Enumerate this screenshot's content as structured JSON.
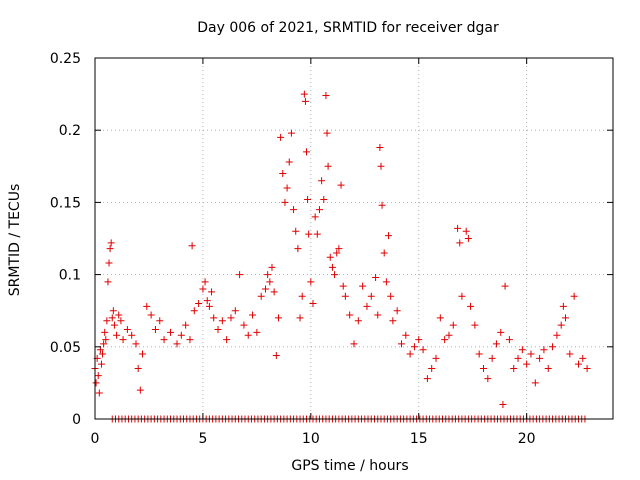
{
  "chart_data": {
    "type": "scatter",
    "title": "Day 006 of 2021, SRMTID for receiver dgar",
    "xlabel": "GPS time / hours",
    "ylabel": "SRMTID / TECUs",
    "xlim": [
      0,
      24
    ],
    "ylim": [
      0,
      0.25
    ],
    "xticks": [
      0,
      5,
      10,
      15,
      20
    ],
    "xtick_labels": [
      "0",
      "5",
      "10",
      "15",
      "20"
    ],
    "yticks": [
      0,
      0.05,
      0.1,
      0.15,
      0.2,
      0.25
    ],
    "ytick_labels": [
      "0",
      "0.05",
      "0.1",
      "0.15",
      "0.2",
      "0.25"
    ],
    "grid": true,
    "marker": "+",
    "color": "#e00000",
    "series": [
      {
        "name": "SRMTID",
        "points": [
          [
            0.0,
            0.035
          ],
          [
            0.05,
            0.025
          ],
          [
            0.1,
            0.042
          ],
          [
            0.15,
            0.03
          ],
          [
            0.2,
            0.018
          ],
          [
            0.25,
            0.048
          ],
          [
            0.3,
            0.038
          ],
          [
            0.35,
            0.045
          ],
          [
            0.4,
            0.052
          ],
          [
            0.45,
            0.06
          ],
          [
            0.5,
            0.055
          ],
          [
            0.55,
            0.068
          ],
          [
            0.6,
            0.095
          ],
          [
            0.65,
            0.108
          ],
          [
            0.7,
            0.118
          ],
          [
            0.75,
            0.122
          ],
          [
            0.8,
            0.07
          ],
          [
            0.85,
            0.075
          ],
          [
            0.9,
            0.065
          ],
          [
            1.0,
            0.058
          ],
          [
            1.1,
            0.072
          ],
          [
            1.2,
            0.068
          ],
          [
            1.3,
            0.055
          ],
          [
            1.5,
            0.062
          ],
          [
            1.7,
            0.058
          ],
          [
            1.9,
            0.052
          ],
          [
            2.0,
            0.035
          ],
          [
            2.1,
            0.02
          ],
          [
            2.2,
            0.045
          ],
          [
            2.4,
            0.078
          ],
          [
            2.6,
            0.072
          ],
          [
            2.8,
            0.062
          ],
          [
            3.0,
            0.068
          ],
          [
            3.2,
            0.055
          ],
          [
            3.5,
            0.06
          ],
          [
            3.8,
            0.052
          ],
          [
            4.0,
            0.058
          ],
          [
            4.2,
            0.065
          ],
          [
            4.4,
            0.055
          ],
          [
            4.5,
            0.12
          ],
          [
            4.6,
            0.075
          ],
          [
            4.8,
            0.08
          ],
          [
            5.0,
            0.09
          ],
          [
            5.1,
            0.095
          ],
          [
            5.2,
            0.082
          ],
          [
            5.3,
            0.078
          ],
          [
            5.4,
            0.088
          ],
          [
            5.5,
            0.07
          ],
          [
            5.7,
            0.062
          ],
          [
            5.9,
            0.068
          ],
          [
            6.1,
            0.055
          ],
          [
            6.3,
            0.07
          ],
          [
            6.5,
            0.075
          ],
          [
            6.7,
            0.1
          ],
          [
            6.9,
            0.065
          ],
          [
            7.1,
            0.058
          ],
          [
            7.3,
            0.072
          ],
          [
            7.5,
            0.06
          ],
          [
            7.7,
            0.085
          ],
          [
            7.9,
            0.09
          ],
          [
            8.0,
            0.1
          ],
          [
            8.1,
            0.095
          ],
          [
            8.2,
            0.105
          ],
          [
            8.3,
            0.088
          ],
          [
            8.4,
            0.044
          ],
          [
            8.5,
            0.07
          ],
          [
            8.6,
            0.195
          ],
          [
            8.7,
            0.17
          ],
          [
            8.8,
            0.15
          ],
          [
            8.9,
            0.16
          ],
          [
            9.0,
            0.178
          ],
          [
            9.1,
            0.198
          ],
          [
            9.2,
            0.145
          ],
          [
            9.3,
            0.13
          ],
          [
            9.4,
            0.118
          ],
          [
            9.5,
            0.07
          ],
          [
            9.6,
            0.085
          ],
          [
            9.7,
            0.225
          ],
          [
            9.75,
            0.22
          ],
          [
            9.8,
            0.185
          ],
          [
            9.85,
            0.152
          ],
          [
            9.9,
            0.128
          ],
          [
            10.0,
            0.095
          ],
          [
            10.1,
            0.08
          ],
          [
            10.2,
            0.14
          ],
          [
            10.3,
            0.128
          ],
          [
            10.4,
            0.145
          ],
          [
            10.5,
            0.165
          ],
          [
            10.6,
            0.152
          ],
          [
            10.7,
            0.224
          ],
          [
            10.75,
            0.198
          ],
          [
            10.8,
            0.175
          ],
          [
            10.9,
            0.112
          ],
          [
            11.0,
            0.105
          ],
          [
            11.1,
            0.1
          ],
          [
            11.2,
            0.115
          ],
          [
            11.3,
            0.118
          ],
          [
            11.4,
            0.162
          ],
          [
            11.5,
            0.092
          ],
          [
            11.6,
            0.085
          ],
          [
            11.8,
            0.072
          ],
          [
            12.0,
            0.052
          ],
          [
            12.2,
            0.068
          ],
          [
            12.4,
            0.092
          ],
          [
            12.6,
            0.078
          ],
          [
            12.8,
            0.085
          ],
          [
            13.0,
            0.098
          ],
          [
            13.1,
            0.072
          ],
          [
            13.2,
            0.188
          ],
          [
            13.25,
            0.175
          ],
          [
            13.3,
            0.148
          ],
          [
            13.4,
            0.115
          ],
          [
            13.5,
            0.095
          ],
          [
            13.6,
            0.127
          ],
          [
            13.7,
            0.085
          ],
          [
            13.8,
            0.068
          ],
          [
            14.0,
            0.075
          ],
          [
            14.2,
            0.052
          ],
          [
            14.4,
            0.058
          ],
          [
            14.6,
            0.045
          ],
          [
            14.8,
            0.05
          ],
          [
            15.0,
            0.055
          ],
          [
            15.2,
            0.048
          ],
          [
            15.4,
            0.028
          ],
          [
            15.6,
            0.035
          ],
          [
            15.8,
            0.042
          ],
          [
            16.0,
            0.07
          ],
          [
            16.2,
            0.055
          ],
          [
            16.4,
            0.058
          ],
          [
            16.6,
            0.065
          ],
          [
            16.8,
            0.132
          ],
          [
            16.9,
            0.122
          ],
          [
            17.0,
            0.085
          ],
          [
            17.2,
            0.13
          ],
          [
            17.3,
            0.125
          ],
          [
            17.4,
            0.078
          ],
          [
            17.6,
            0.065
          ],
          [
            17.8,
            0.045
          ],
          [
            18.0,
            0.035
          ],
          [
            18.2,
            0.028
          ],
          [
            18.4,
            0.042
          ],
          [
            18.6,
            0.052
          ],
          [
            18.8,
            0.06
          ],
          [
            18.9,
            0.01
          ],
          [
            19.0,
            0.092
          ],
          [
            19.2,
            0.055
          ],
          [
            19.4,
            0.035
          ],
          [
            19.6,
            0.042
          ],
          [
            19.8,
            0.048
          ],
          [
            20.0,
            0.038
          ],
          [
            20.2,
            0.045
          ],
          [
            20.4,
            0.025
          ],
          [
            20.6,
            0.042
          ],
          [
            20.8,
            0.048
          ],
          [
            21.0,
            0.035
          ],
          [
            21.2,
            0.05
          ],
          [
            21.4,
            0.058
          ],
          [
            21.6,
            0.065
          ],
          [
            21.7,
            0.078
          ],
          [
            21.8,
            0.07
          ],
          [
            22.0,
            0.045
          ],
          [
            22.2,
            0.085
          ],
          [
            22.4,
            0.038
          ],
          [
            22.6,
            0.042
          ],
          [
            22.8,
            0.035
          ]
        ]
      },
      {
        "name": "zero-baseline",
        "x_start": 0.8,
        "x_end": 22.8,
        "x_step": 0.15,
        "y": 0
      }
    ]
  }
}
